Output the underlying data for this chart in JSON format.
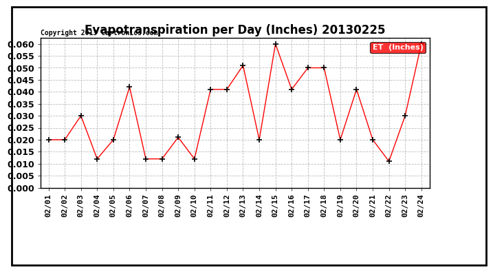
{
  "title": "Evapotranspiration per Day (Inches) 20130225",
  "copyright": "Copyright 2013 Cartronics.com",
  "legend_label": "ET  (Inches)",
  "dates": [
    "02/01",
    "02/02",
    "02/03",
    "02/04",
    "02/05",
    "02/06",
    "02/07",
    "02/08",
    "02/09",
    "02/10",
    "02/11",
    "02/12",
    "02/13",
    "02/14",
    "02/15",
    "02/16",
    "02/17",
    "02/18",
    "02/19",
    "02/20",
    "02/21",
    "02/22",
    "02/23",
    "02/24"
  ],
  "values": [
    0.02,
    0.02,
    0.03,
    0.012,
    0.02,
    0.042,
    0.012,
    0.012,
    0.021,
    0.012,
    0.041,
    0.041,
    0.051,
    0.02,
    0.06,
    0.041,
    0.05,
    0.05,
    0.02,
    0.041,
    0.02,
    0.011,
    0.03,
    0.06
  ],
  "ylim": [
    0.0,
    0.0625
  ],
  "yticks": [
    0.0,
    0.005,
    0.01,
    0.015,
    0.02,
    0.025,
    0.03,
    0.035,
    0.04,
    0.045,
    0.05,
    0.055,
    0.06
  ],
  "line_color": "red",
  "marker": "+",
  "marker_color": "black",
  "marker_size": 6,
  "marker_linewidth": 1.2,
  "background_color": "#ffffff",
  "grid_color": "#bbbbbb",
  "title_fontsize": 12,
  "copyright_fontsize": 7,
  "tick_fontsize": 8,
  "ytick_fontsize": 9,
  "legend_bg": "red",
  "legend_text_color": "white",
  "legend_fontsize": 8,
  "outer_border_color": "black",
  "outer_border_linewidth": 1.5
}
